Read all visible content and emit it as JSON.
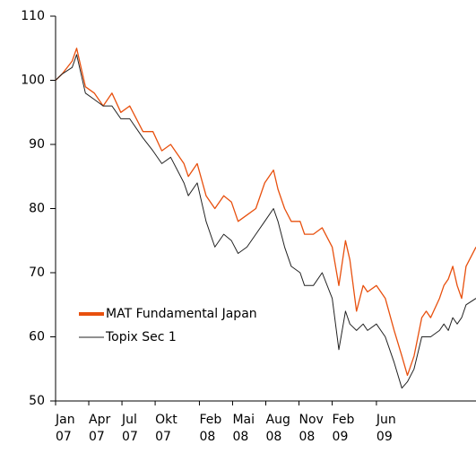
{
  "chart_data": {
    "type": "line",
    "x": [
      0,
      0.6,
      1.5,
      1.9,
      2.7,
      3.5,
      4.3,
      5.1,
      5.9,
      6.7,
      7.9,
      8.8,
      9.6,
      10.4,
      11.6,
      12.0,
      12.8,
      13.6,
      14.4,
      15.2,
      15.9,
      16.5,
      17.3,
      18.1,
      18.9,
      19.7,
      20.1,
      20.7,
      21.3,
      22.1,
      22.5,
      23.3,
      24.1,
      25.0,
      25.6,
      26.2,
      26.6,
      27.2,
      27.8,
      28.2,
      29.0,
      29.8,
      30.6,
      31.3,
      31.8,
      32.4,
      33.1,
      33.5,
      33.9,
      34.7,
      35.1,
      35.5,
      35.9,
      36.3,
      36.7,
      37.1,
      38.0
    ],
    "series": [
      {
        "name": "MAT Fundamental Japan",
        "color": "#e8500e",
        "values": [
          100,
          101,
          103,
          105,
          99,
          98,
          96,
          98,
          95,
          96,
          92,
          92,
          89,
          90,
          87,
          85,
          87,
          82,
          80,
          82,
          81,
          78,
          79,
          80,
          84,
          86,
          83,
          80,
          78,
          78,
          76,
          76,
          77,
          74,
          68,
          75,
          72,
          64,
          68,
          67,
          68,
          66,
          61,
          57,
          54,
          57,
          63,
          64,
          63,
          66,
          68,
          69,
          71,
          68,
          66,
          71,
          74
        ]
      },
      {
        "name": "Topix Sec 1",
        "color": "#222222",
        "values": [
          100,
          101,
          102,
          104,
          98,
          97,
          96,
          96,
          94,
          94,
          91,
          89,
          87,
          88,
          84,
          82,
          84,
          78,
          74,
          76,
          75,
          73,
          74,
          76,
          78,
          80,
          78,
          74,
          71,
          70,
          68,
          68,
          70,
          66,
          58,
          64,
          62,
          61,
          62,
          61,
          62,
          60,
          56,
          52,
          53,
          55,
          60,
          60,
          60,
          61,
          62,
          61,
          63,
          62,
          63,
          65,
          66
        ]
      }
    ],
    "xlim": [
      0,
      38
    ],
    "xticks": [
      {
        "value": 0,
        "label": "Jan 07"
      },
      {
        "value": 3,
        "label": "Apr 07"
      },
      {
        "value": 6,
        "label": "Jul 07"
      },
      {
        "value": 9,
        "label": "Okt 07"
      },
      {
        "value": 13,
        "label": "Feb 08"
      },
      {
        "value": 16,
        "label": "Mai 08"
      },
      {
        "value": 19,
        "label": "Aug 08"
      },
      {
        "value": 22,
        "label": "Nov 08"
      },
      {
        "value": 25,
        "label": "Feb 09"
      },
      {
        "value": 29,
        "label": "Jun 09"
      }
    ],
    "ylim": [
      50,
      110
    ],
    "yticks": [
      50,
      60,
      70,
      80,
      90,
      100,
      110
    ],
    "legend": "lower left"
  }
}
